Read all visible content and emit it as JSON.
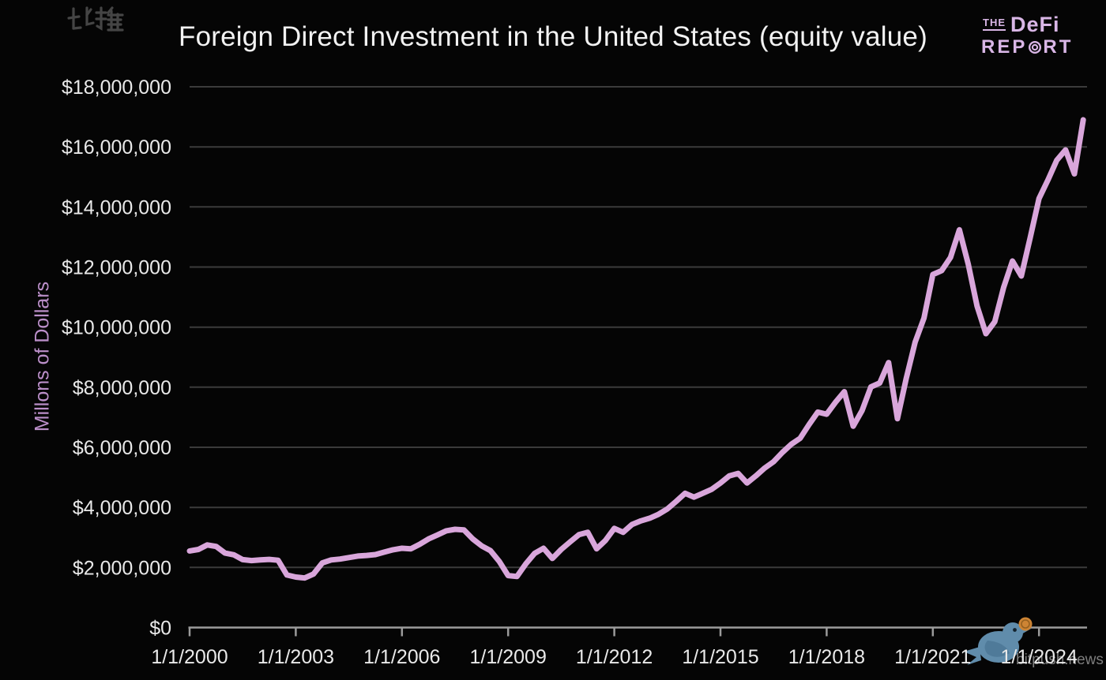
{
  "header": {
    "title": "Foreign Direct Investment in the United States (equity value)",
    "logo": {
      "the": "THE",
      "defi": "DeFi",
      "report_prefix": "REP",
      "report_o_icon": "bullseye",
      "report_suffix": "RT"
    }
  },
  "chart_data": {
    "type": "line",
    "title": "Foreign Direct Investment in the United States (equity value)",
    "xlabel": "",
    "ylabel": "Millons of Dollars",
    "units": "millions of dollars",
    "frequency": "quarterly",
    "x_start": "1/1/2000",
    "x_end": "4/1/2025",
    "x_tick_labels": [
      "1/1/2000",
      "1/1/2003",
      "1/1/2006",
      "1/1/2009",
      "1/1/2012",
      "1/1/2015",
      "1/1/2018",
      "1/1/2021",
      "1/1/2024"
    ],
    "x_tick_quarter_indices": [
      0,
      12,
      24,
      36,
      48,
      60,
      72,
      84,
      96
    ],
    "y_ticks": [
      0,
      2000000,
      4000000,
      6000000,
      8000000,
      10000000,
      12000000,
      14000000,
      16000000,
      18000000
    ],
    "y_tick_labels": [
      "$0",
      "$2,000,000",
      "$4,000,000",
      "$6,000,000",
      "$8,000,000",
      "$10,000,000",
      "$12,000,000",
      "$14,000,000",
      "$16,000,000",
      "$18,000,000"
    ],
    "ylim": [
      0,
      18000000
    ],
    "grid": "horizontal",
    "legend": "none",
    "series": [
      {
        "name": "FDI in the United States (equity value)",
        "values": [
          2550000,
          2600000,
          2750000,
          2700000,
          2480000,
          2420000,
          2260000,
          2230000,
          2250000,
          2270000,
          2240000,
          1750000,
          1680000,
          1650000,
          1780000,
          2150000,
          2250000,
          2280000,
          2330000,
          2380000,
          2400000,
          2430000,
          2510000,
          2590000,
          2640000,
          2620000,
          2770000,
          2950000,
          3080000,
          3220000,
          3270000,
          3250000,
          2950000,
          2720000,
          2560000,
          2200000,
          1730000,
          1700000,
          2120000,
          2470000,
          2640000,
          2300000,
          2600000,
          2850000,
          3090000,
          3170000,
          2620000,
          2900000,
          3300000,
          3170000,
          3430000,
          3550000,
          3640000,
          3770000,
          3950000,
          4200000,
          4470000,
          4340000,
          4470000,
          4600000,
          4810000,
          5050000,
          5130000,
          4810000,
          5050000,
          5310000,
          5520000,
          5830000,
          6100000,
          6300000,
          6750000,
          7170000,
          7100000,
          7500000,
          7850000,
          6700000,
          7220000,
          8010000,
          8140000,
          8820000,
          6950000,
          8300000,
          9500000,
          10300000,
          11750000,
          11880000,
          12320000,
          13240000,
          12100000,
          10700000,
          9780000,
          10180000,
          11320000,
          12200000,
          11700000,
          12970000,
          14280000,
          14890000,
          15550000,
          15900000,
          15100000,
          16900000
        ]
      }
    ]
  },
  "watermark": {
    "bird_icon": "bitpush-bird",
    "coin_icon": "bitcoin-coin",
    "text": "比推",
    "subtext": "bitpush.news"
  },
  "colors": {
    "background": "#050505",
    "title": "#f2f2f2",
    "tick_label": "#e9e9e9",
    "ylabel": "#bb8fc9",
    "logo": "#d9b6e6",
    "gridline": "#3b3b3b",
    "axis_line": "#9b9b9b",
    "line": "#d9a6db",
    "bird": "#608cab",
    "wing": "#4f7a99",
    "coin": "#cd8434",
    "coin_ring": "#96601f",
    "watermark_text": "#454545",
    "watermark_subtext": "#7e7e7e"
  }
}
